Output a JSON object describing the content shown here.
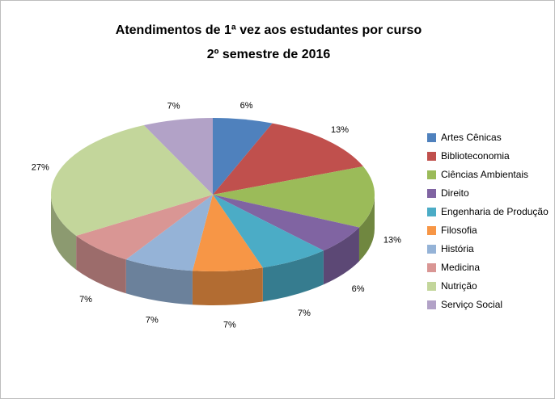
{
  "title": {
    "line1": "Atendimentos de 1ª vez aos estudantes por curso",
    "line2": "2º semestre de 2016"
  },
  "chart_data": {
    "type": "pie",
    "style": "3d",
    "title": "Atendimentos de 1ª vez aos estudantes por curso — 2º semestre de 2016",
    "categories": [
      "Artes Cênicas",
      "Biblioteconomia",
      "Ciências Ambientais",
      "Direito",
      "Engenharia de Produção",
      "Filosofia",
      "História",
      "Medicina",
      "Nutrição",
      "Serviço Social"
    ],
    "values": [
      6,
      13,
      13,
      6,
      7,
      7,
      7,
      7,
      27,
      7
    ],
    "unit": "%",
    "labels": [
      "6%",
      "13%",
      "13%",
      "6%",
      "7%",
      "7%",
      "7%",
      "7%",
      "27%",
      "7%"
    ],
    "colors": [
      "#4F81BD",
      "#C0504D",
      "#9BBB59",
      "#8064A2",
      "#4BACC6",
      "#F79646",
      "#95B3D7",
      "#D99694",
      "#C3D69B",
      "#B2A2C7"
    ],
    "legend_position": "right",
    "start_angle_deg": 0,
    "direction": "clockwise"
  }
}
